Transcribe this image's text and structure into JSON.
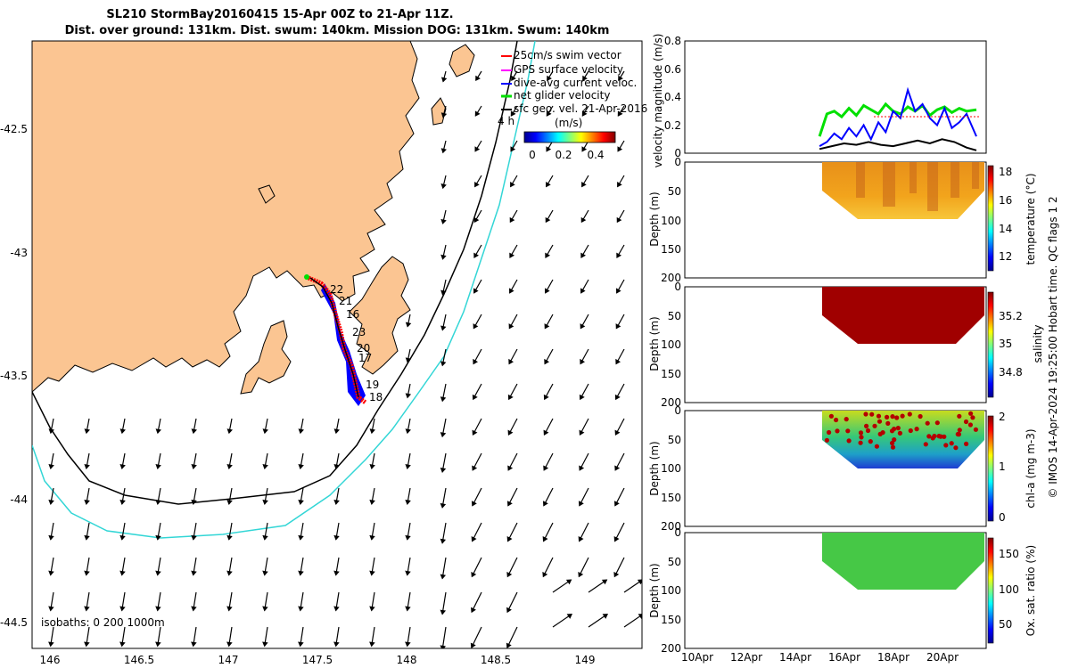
{
  "title_line1": "SL210 StormBay20160415 15-Apr 00Z to 21-Apr 11Z.",
  "title_line2": "Dist. over ground: 131km. Dist. swum: 140km. Mission DOG: 131km. Swum: 140km",
  "footer": "© IMOS 14-Apr-2024 19:25:00 Hobart time. QC flags 1  2",
  "map": {
    "legend": [
      "25cm/s swim vector",
      "GPS surface velocity",
      "dive-avg current veloc.",
      "net glider velocity",
      "sfc geo. vel. 21-Apr-2016"
    ],
    "legend_note": "4 h",
    "colorbar_label": "(m/s)",
    "colorbar_ticks": [
      "0",
      "0.2",
      "0.4"
    ],
    "isobaths_label": "isobaths: 0   200  1000m",
    "x_ticks": [
      "146",
      "146.5",
      "147",
      "147.5",
      "148",
      "148.5",
      "149"
    ],
    "y_ticks": [
      "-42.5",
      "-43",
      "-43.5",
      "-44",
      "-44.5"
    ],
    "day_labels": [
      "22",
      "21",
      "16",
      "23",
      "20",
      "17",
      "19",
      "18"
    ],
    "colors": {
      "land": "#fbc592",
      "isobath_200": "#000000",
      "isobath_1000": "#33d6d6"
    }
  },
  "chart_data": [
    {
      "type": "line",
      "ylabel": "velocity magnitude (m/s)",
      "ylim": [
        0,
        0.8
      ],
      "y_ticks": [
        "0",
        "0.2",
        "0.4",
        "0.6",
        "0.8"
      ],
      "x_range_days_apr": [
        9.5,
        21.8
      ],
      "series": [
        {
          "color": "#00e000",
          "x": [
            15.0,
            15.3,
            15.6,
            15.9,
            16.2,
            16.5,
            16.8,
            17.1,
            17.4,
            17.7,
            18.0,
            18.3,
            18.6,
            18.9,
            19.2,
            19.5,
            19.8,
            20.1,
            20.4,
            20.7,
            21.0,
            21.4
          ],
          "y": [
            0.12,
            0.28,
            0.3,
            0.26,
            0.32,
            0.27,
            0.34,
            0.31,
            0.28,
            0.35,
            0.3,
            0.28,
            0.33,
            0.3,
            0.34,
            0.27,
            0.31,
            0.33,
            0.29,
            0.32,
            0.3,
            0.31
          ]
        },
        {
          "color": "#0000ff",
          "x": [
            15.0,
            15.3,
            15.6,
            15.9,
            16.2,
            16.5,
            16.8,
            17.1,
            17.4,
            17.7,
            18.0,
            18.3,
            18.6,
            18.9,
            19.2,
            19.5,
            19.8,
            20.1,
            20.4,
            20.7,
            21.0,
            21.4
          ],
          "y": [
            0.05,
            0.08,
            0.14,
            0.1,
            0.18,
            0.12,
            0.2,
            0.1,
            0.22,
            0.15,
            0.3,
            0.25,
            0.45,
            0.3,
            0.35,
            0.25,
            0.2,
            0.32,
            0.18,
            0.22,
            0.28,
            0.12
          ]
        },
        {
          "color": "#000000",
          "x": [
            15.0,
            15.5,
            16.0,
            16.5,
            17.0,
            17.5,
            18.0,
            18.5,
            19.0,
            19.5,
            20.0,
            20.5,
            21.0,
            21.4
          ],
          "y": [
            0.03,
            0.05,
            0.07,
            0.06,
            0.08,
            0.06,
            0.05,
            0.07,
            0.09,
            0.07,
            0.1,
            0.08,
            0.04,
            0.02
          ]
        }
      ]
    },
    {
      "type": "heatmap",
      "ylabel": "Depth (m)",
      "cblabel": "temperature (°C)",
      "cb_ticks": [
        "12",
        "14",
        "16",
        "18"
      ],
      "y_ticks": [
        "0",
        "50",
        "100",
        "150",
        "200"
      ]
    },
    {
      "type": "heatmap",
      "ylabel": "Depth (m)",
      "cblabel": "salinity",
      "cb_ticks": [
        "34.8",
        "35",
        "35.2"
      ],
      "y_ticks": [
        "0",
        "50",
        "100",
        "150",
        "200"
      ]
    },
    {
      "type": "heatmap",
      "ylabel": "Depth (m)",
      "cblabel": "chl-a (mg m-3)",
      "cb_ticks": [
        "0",
        "1",
        "2"
      ],
      "y_ticks": [
        "0",
        "50",
        "100",
        "150",
        "200"
      ]
    },
    {
      "type": "heatmap",
      "ylabel": "Depth (m)",
      "cblabel": "Ox. sat. ratio (%)",
      "cb_ticks": [
        "50",
        "100",
        "150"
      ],
      "y_ticks": [
        "0",
        "50",
        "100",
        "150",
        "200"
      ],
      "x_ticks": [
        "10Apr",
        "12Apr",
        "14Apr",
        "16Apr",
        "18Apr",
        "20Apr"
      ]
    }
  ]
}
